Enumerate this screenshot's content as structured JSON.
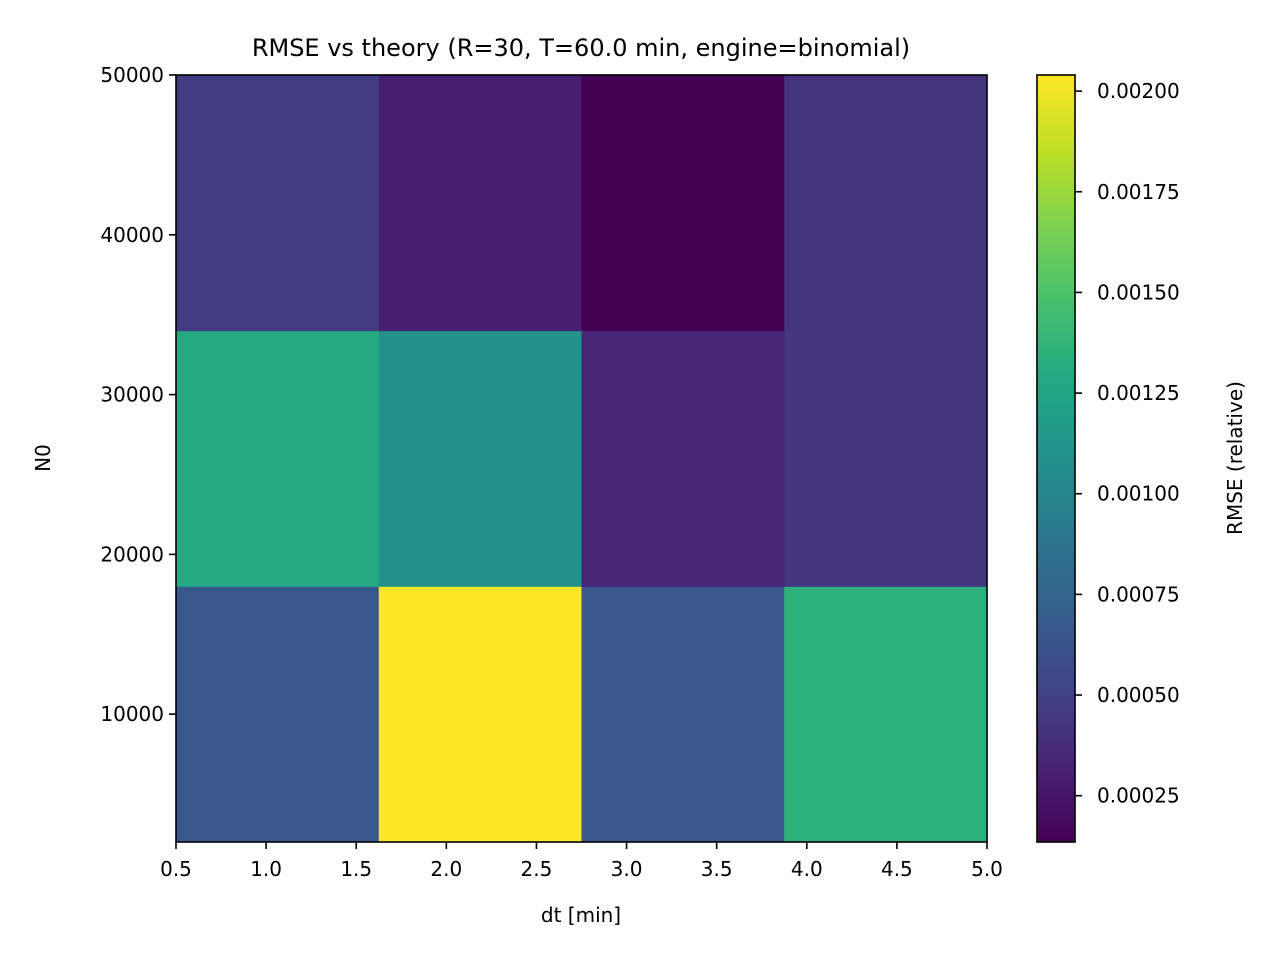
{
  "chart_data": {
    "type": "heatmap",
    "title": "RMSE vs theory (R=30, T=60.0 min, engine=binomial)",
    "xlabel": "dt [min]",
    "ylabel": "N0",
    "xlim": [
      0.5,
      5.0
    ],
    "ylim": [
      2000,
      50000
    ],
    "x_ticks": [
      "0.5",
      "1.0",
      "1.5",
      "2.0",
      "2.5",
      "3.0",
      "3.5",
      "4.0",
      "4.5",
      "5.0"
    ],
    "x_tick_values": [
      0.5,
      1.0,
      1.5,
      2.0,
      2.5,
      3.0,
      3.5,
      4.0,
      4.5,
      5.0
    ],
    "y_ticks": [
      "10000",
      "20000",
      "30000",
      "40000",
      "50000"
    ],
    "y_tick_values": [
      10000,
      20000,
      30000,
      40000,
      50000
    ],
    "x_edges": [
      0.5,
      1.625,
      2.75,
      3.875,
      5.0
    ],
    "y_edges": [
      2000,
      18000,
      34000,
      50000
    ],
    "values": [
      [
        0.00066,
        0.00204,
        0.00066,
        0.00135
      ],
      [
        0.00129,
        0.0011,
        0.00033,
        0.00044
      ],
      [
        0.00046,
        0.0003,
        0.00014,
        0.00042
      ]
    ],
    "colormap": "viridis",
    "colorbar": {
      "label": "RMSE (relative)",
      "min": 0.000135,
      "max": 0.00204,
      "ticks": [
        "0.00025",
        "0.00050",
        "0.00075",
        "0.00100",
        "0.00125",
        "0.00150",
        "0.00175",
        "0.00200"
      ],
      "tick_values": [
        0.00025,
        0.0005,
        0.00075,
        0.001,
        0.00125,
        0.0015,
        0.00175,
        0.002
      ]
    },
    "grid": false
  }
}
